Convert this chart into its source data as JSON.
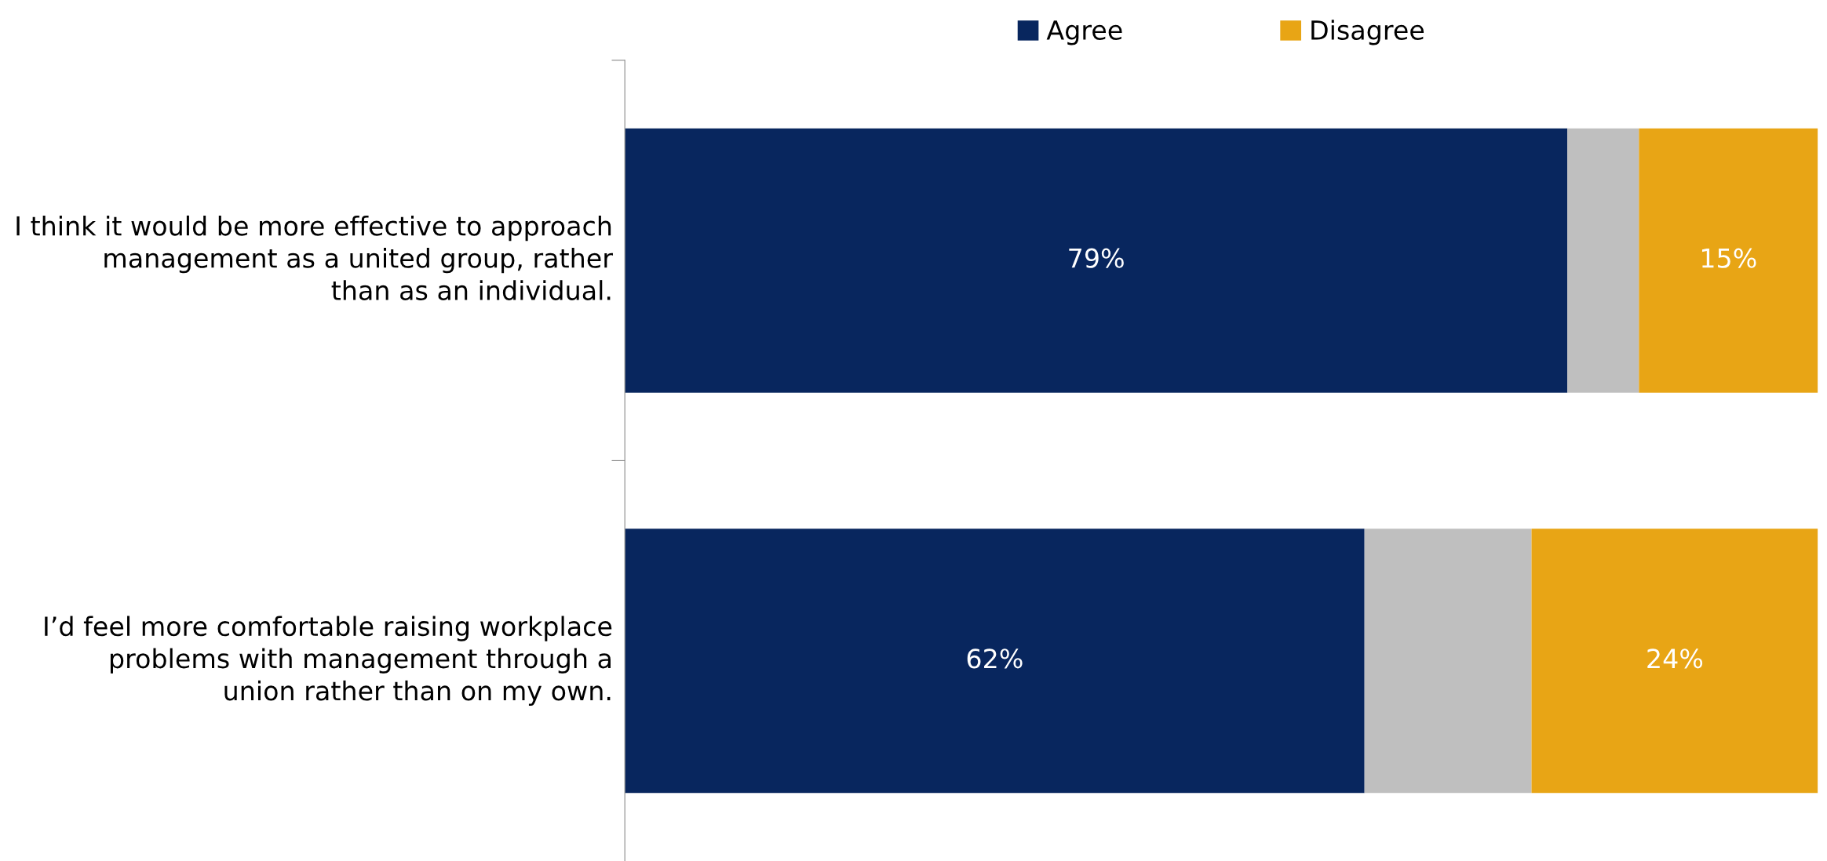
{
  "chart_data": {
    "type": "bar",
    "orientation": "horizontal",
    "stacked": true,
    "categories": [
      "I think it would be more effective to approach\nmanagement as a united group, rather\nthan as an individual.",
      "I’d feel more comfortable raising workplace\nproblems with management through a\nunion rather than on my own."
    ],
    "series": [
      {
        "name": "Agree",
        "color": "#08265e",
        "values": [
          79,
          62
        ],
        "value_labels": [
          "79%",
          "62%"
        ]
      },
      {
        "color": "#bfbfbf",
        "values": [
          6,
          14
        ]
      },
      {
        "name": "Disagree",
        "color": "#e8a515",
        "values": [
          15,
          24
        ],
        "value_labels": [
          "15%",
          "24%"
        ]
      }
    ],
    "xlim": [
      0,
      100
    ],
    "tick_labels": "y",
    "grid": false,
    "legend": "top"
  }
}
